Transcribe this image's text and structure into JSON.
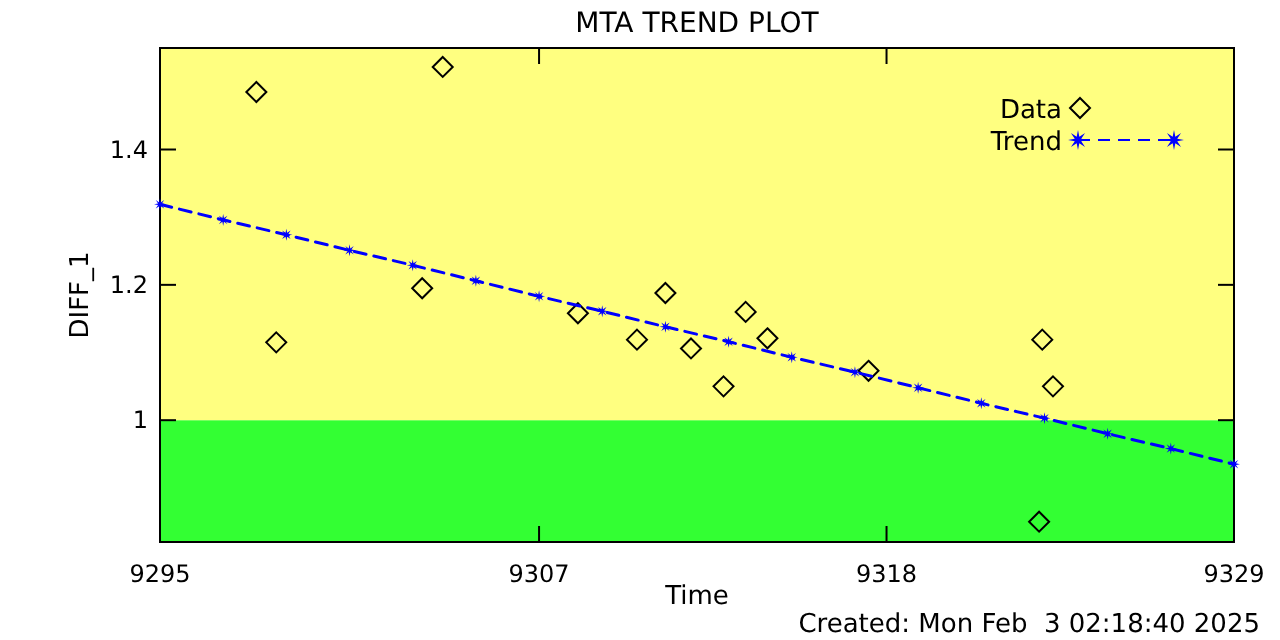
{
  "chart_data": {
    "type": "scatter",
    "title": "MTA TREND PLOT",
    "xlabel": "Time",
    "ylabel": "DIFF_1",
    "annotations": [
      "Created: Mon Feb  3 02:18:40 2025"
    ],
    "xlim": [
      9295,
      9329
    ],
    "xticks": [
      9295,
      9307,
      9318,
      9329
    ],
    "ylim": [
      0.82,
      1.55
    ],
    "yticks": [
      1.0,
      1.2,
      1.4
    ],
    "bands": [
      {
        "axis": "y",
        "from": 0.82,
        "to": 1.0,
        "color": "#33ff33"
      },
      {
        "axis": "y",
        "from": 1.0,
        "to": 1.55,
        "color": "#ffff80"
      }
    ],
    "legend": "top right",
    "grid": false,
    "series": [
      {
        "name": "Data",
        "color": "#000000",
        "marker": "diamond",
        "x": [
          9298.05,
          9298.68,
          9303.3,
          9303.95,
          9308.23,
          9310.1,
          9311.0,
          9311.81,
          9312.84,
          9313.54,
          9314.23,
          9317.43,
          9322.83,
          9322.93,
          9323.27
        ],
        "values": [
          1.485,
          1.115,
          1.195,
          1.522,
          1.158,
          1.119,
          1.188,
          1.106,
          1.05,
          1.16,
          1.121,
          1.073,
          0.85,
          1.119,
          1.05
        ]
      },
      {
        "name": "Trend",
        "type": "line",
        "color": "#0000ff",
        "marker": "star",
        "line_style": "dashed",
        "x": [
          9295,
          9297,
          9299,
          9301,
          9303,
          9305,
          9307,
          9309,
          9311,
          9313,
          9315,
          9317,
          9319,
          9321,
          9323,
          9325,
          9327,
          9329
        ],
        "values": [
          1.319,
          1.296,
          1.274,
          1.251,
          1.229,
          1.206,
          1.183,
          1.161,
          1.138,
          1.116,
          1.093,
          1.071,
          1.048,
          1.025,
          1.003,
          0.98,
          0.958,
          0.935
        ]
      }
    ]
  }
}
